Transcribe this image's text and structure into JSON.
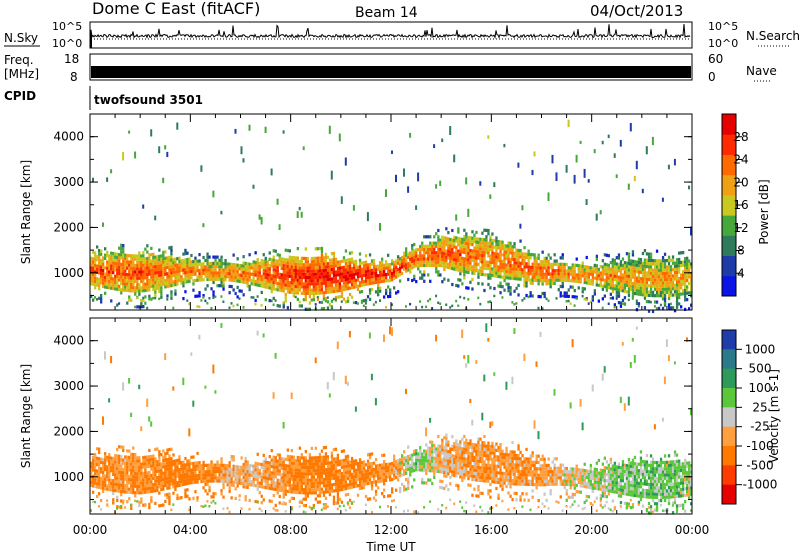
{
  "header": {
    "station": "Dome C East (fitACF)",
    "beam": "Beam 14",
    "date": "04/Oct/2013"
  },
  "strip_panels": {
    "nsky": {
      "label": "N.Sky",
      "ticks": [
        "10^5",
        "10^0"
      ],
      "right_label": "N.Search",
      "right_ticks": [
        "10^5",
        "10^0"
      ]
    },
    "freq": {
      "label_line1": "Freq.",
      "label_line2": "[MHz]",
      "ticks": [
        "18",
        "8"
      ],
      "right_label": "Nave",
      "right_ticks": [
        "60",
        "0"
      ]
    },
    "cpid": {
      "label": "CPID",
      "value": "twofsound 3501"
    }
  },
  "axes": {
    "ylabel": "Slant Range [km]",
    "xlabel": "Time UT",
    "xticks": [
      "00:00",
      "04:00",
      "08:00",
      "12:00",
      "16:00",
      "20:00",
      "00:00"
    ],
    "yticks": [
      "1000",
      "2000",
      "3000",
      "4000"
    ]
  },
  "colorbars": {
    "power": {
      "label": "Power [dB]",
      "ticks": [
        "4",
        "8",
        "12",
        "16",
        "20",
        "24",
        "28"
      ],
      "colors": [
        "#0a14e6",
        "#1e3ca8",
        "#2e7a5a",
        "#46a83a",
        "#c8c81e",
        "#f0a014",
        "#ff6a00",
        "#ff2a00",
        "#e60000"
      ]
    },
    "velocity": {
      "label": "Velocity [m s-1]",
      "ticks": [
        "1000",
        "500",
        "100",
        "25",
        "-25",
        "-100",
        "-500",
        "-1000"
      ],
      "colors": [
        "#1e3caa",
        "#2a7a8a",
        "#2e9a5a",
        "#5ac83a",
        "#c8c8c8",
        "#ffa040",
        "#ff7800",
        "#ff3c00",
        "#e60000"
      ]
    }
  },
  "chart_data": [
    {
      "type": "heatmap",
      "title": "Power",
      "xlabel": "Time UT",
      "ylabel": "Slant Range [km]",
      "xlim": [
        0,
        24
      ],
      "ylim": [
        180,
        4500
      ],
      "zlabel": "Power [dB]",
      "zlim": [
        0,
        30
      ],
      "backscatter_band": {
        "x": [
          0,
          2,
          4,
          6,
          8,
          10,
          12,
          13,
          14,
          16,
          18,
          20,
          22,
          24
        ],
        "center_range_km": [
          1000,
          950,
          1000,
          950,
          900,
          900,
          950,
          1300,
          1400,
          1300,
          1000,
          900,
          850,
          850
        ],
        "typical_power_db": [
          24,
          24,
          22,
          22,
          26,
          28,
          26,
          24,
          24,
          22,
          24,
          22,
          20,
          20
        ]
      }
    },
    {
      "type": "heatmap",
      "title": "Velocity",
      "xlabel": "Time UT",
      "ylabel": "Slant Range [km]",
      "xlim": [
        0,
        24
      ],
      "ylim": [
        180,
        4500
      ],
      "zlabel": "Velocity [m s-1]",
      "zlim": [
        -1000,
        1000
      ],
      "backscatter_band": {
        "x": [
          0,
          2,
          4,
          6,
          8,
          10,
          12,
          13,
          14,
          16,
          18,
          20,
          22,
          24
        ],
        "center_range_km": [
          1050,
          1000,
          1050,
          1000,
          1000,
          1000,
          1050,
          1300,
          1350,
          1250,
          1000,
          900,
          900,
          900
        ],
        "typical_velocity_ms": [
          -100,
          -100,
          -150,
          -50,
          -100,
          -150,
          -100,
          50,
          -50,
          -100,
          -80,
          20,
          60,
          40
        ]
      }
    }
  ]
}
